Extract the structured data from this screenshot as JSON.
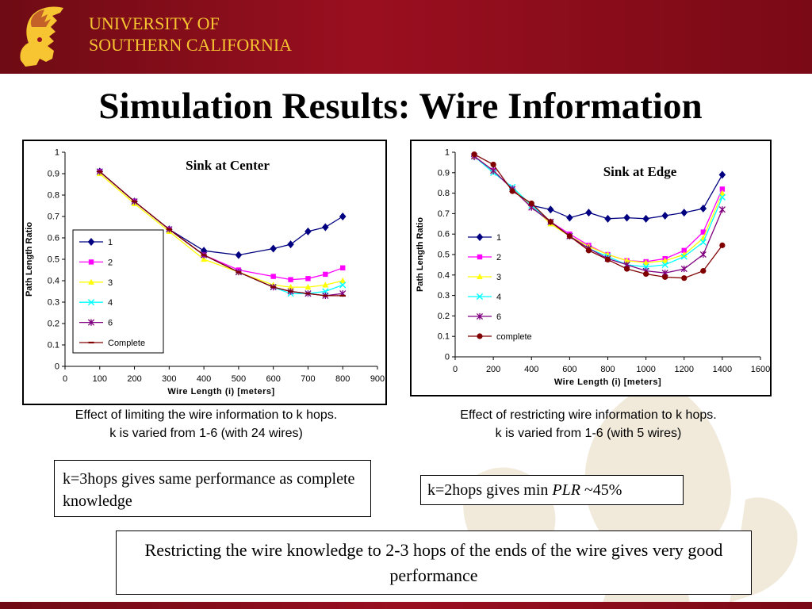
{
  "header": {
    "university_line1": "UNIVERSITY OF",
    "university_line2": "SOUTHERN CALIFORNIA"
  },
  "slide": {
    "title": "Simulation Results: Wire Information"
  },
  "captions": {
    "left_line1": "Effect of limiting the wire information to k hops.",
    "left_line2": "k is varied from 1-6 (with 24 wires)",
    "right_line1": "Effect of restricting wire information to k hops.",
    "right_line2": "k is varied from 1-6 (with 5 wires)"
  },
  "notes": {
    "left": "k=3hops gives same performance as complete knowledge",
    "right_prefix": "k=2hops gives min ",
    "right_italic": "PLR",
    "right_suffix": " ~45%",
    "bottom": "Restricting the wire knowledge to 2-3 hops of the ends of the wire gives very good performance"
  },
  "colors": {
    "header": "#9a0f20",
    "logo": "#f7c531"
  },
  "chart_data": [
    {
      "type": "line",
      "title": "Sink at Center",
      "xlabel": "Wire Length (i)  [meters]",
      "ylabel": "Path Length Ratio",
      "xlim": [
        0,
        900
      ],
      "ylim": [
        0,
        1
      ],
      "xticks": [
        "0",
        "100",
        "200",
        "300",
        "400",
        "500",
        "600",
        "700",
        "800",
        "900"
      ],
      "yticks": [
        "0",
        "0.1",
        "0.2",
        "0.3",
        "0.4",
        "0.5",
        "0.6",
        "0.7",
        "0.8",
        "0.9",
        "1"
      ],
      "legend_position": "left",
      "series": [
        {
          "name": "1",
          "color": "#000080",
          "marker": "diamond",
          "points": [
            [
              100,
              0.91
            ],
            [
              200,
              0.77
            ],
            [
              300,
              0.64
            ],
            [
              400,
              0.54
            ],
            [
              500,
              0.52
            ],
            [
              600,
              0.55
            ],
            [
              650,
              0.57
            ],
            [
              700,
              0.63
            ],
            [
              750,
              0.65
            ],
            [
              800,
              0.7
            ]
          ]
        },
        {
          "name": "2",
          "color": "#ff00ff",
          "marker": "square",
          "points": [
            [
              100,
              0.91
            ],
            [
              200,
              0.77
            ],
            [
              300,
              0.64
            ],
            [
              400,
              0.52
            ],
            [
              500,
              0.45
            ],
            [
              600,
              0.42
            ],
            [
              650,
              0.405
            ],
            [
              700,
              0.41
            ],
            [
              750,
              0.43
            ],
            [
              800,
              0.46
            ]
          ]
        },
        {
          "name": "3",
          "color": "#ffff00",
          "marker": "triangle",
          "points": [
            [
              100,
              0.9
            ],
            [
              200,
              0.76
            ],
            [
              300,
              0.63
            ],
            [
              400,
              0.5
            ],
            [
              500,
              0.44
            ],
            [
              600,
              0.38
            ],
            [
              650,
              0.37
            ],
            [
              700,
              0.37
            ],
            [
              750,
              0.38
            ],
            [
              800,
              0.4
            ]
          ]
        },
        {
          "name": "4",
          "color": "#00ffff",
          "marker": "x",
          "points": [
            [
              100,
              0.91
            ],
            [
              200,
              0.77
            ],
            [
              300,
              0.64
            ],
            [
              400,
              0.52
            ],
            [
              500,
              0.44
            ],
            [
              600,
              0.37
            ],
            [
              650,
              0.34
            ],
            [
              700,
              0.34
            ],
            [
              750,
              0.35
            ],
            [
              800,
              0.38
            ]
          ]
        },
        {
          "name": "6",
          "color": "#800080",
          "marker": "star",
          "points": [
            [
              100,
              0.91
            ],
            [
              200,
              0.77
            ],
            [
              300,
              0.64
            ],
            [
              400,
              0.52
            ],
            [
              500,
              0.44
            ],
            [
              600,
              0.37
            ],
            [
              650,
              0.35
            ],
            [
              700,
              0.34
            ],
            [
              750,
              0.33
            ],
            [
              800,
              0.34
            ]
          ]
        },
        {
          "name": "Complete",
          "color": "#800000",
          "marker": "dash",
          "points": [
            [
              100,
              0.91
            ],
            [
              200,
              0.77
            ],
            [
              300,
              0.64
            ],
            [
              400,
              0.52
            ],
            [
              500,
              0.44
            ],
            [
              600,
              0.37
            ],
            [
              650,
              0.35
            ],
            [
              700,
              0.34
            ],
            [
              750,
              0.33
            ],
            [
              800,
              0.33
            ]
          ]
        }
      ]
    },
    {
      "type": "line",
      "title": "Sink at Edge",
      "xlabel": "Wire Length (i) [meters]",
      "ylabel": "Path Length Ratio",
      "xlim": [
        0,
        1600
      ],
      "ylim": [
        0,
        1
      ],
      "xticks": [
        "0",
        "200",
        "400",
        "600",
        "800",
        "1000",
        "1200",
        "1400",
        "1600"
      ],
      "yticks": [
        "0",
        "0.1",
        "0.2",
        "0.3",
        "0.4",
        "0.5",
        "0.6",
        "0.7",
        "0.8",
        "0.9",
        "1"
      ],
      "legend_position": "left",
      "series": [
        {
          "name": "1",
          "color": "#000080",
          "marker": "diamond",
          "points": [
            [
              100,
              0.98
            ],
            [
              200,
              0.91
            ],
            [
              300,
              0.82
            ],
            [
              400,
              0.74
            ],
            [
              500,
              0.72
            ],
            [
              600,
              0.68
            ],
            [
              700,
              0.705
            ],
            [
              800,
              0.675
            ],
            [
              900,
              0.68
            ],
            [
              1000,
              0.675
            ],
            [
              1100,
              0.69
            ],
            [
              1200,
              0.705
            ],
            [
              1300,
              0.725
            ],
            [
              1400,
              0.89
            ]
          ]
        },
        {
          "name": "2",
          "color": "#ff00ff",
          "marker": "square",
          "points": [
            [
              100,
              0.98
            ],
            [
              200,
              0.91
            ],
            [
              300,
              0.82
            ],
            [
              400,
              0.74
            ],
            [
              500,
              0.66
            ],
            [
              600,
              0.6
            ],
            [
              700,
              0.545
            ],
            [
              800,
              0.5
            ],
            [
              900,
              0.47
            ],
            [
              1000,
              0.465
            ],
            [
              1100,
              0.48
            ],
            [
              1200,
              0.52
            ],
            [
              1300,
              0.61
            ],
            [
              1400,
              0.82
            ]
          ]
        },
        {
          "name": "3",
          "color": "#ffff00",
          "marker": "triangle",
          "points": [
            [
              100,
              0.98
            ],
            [
              200,
              0.91
            ],
            [
              300,
              0.82
            ],
            [
              400,
              0.74
            ],
            [
              500,
              0.65
            ],
            [
              600,
              0.59
            ],
            [
              700,
              0.54
            ],
            [
              800,
              0.5
            ],
            [
              900,
              0.47
            ],
            [
              1000,
              0.46
            ],
            [
              1100,
              0.47
            ],
            [
              1200,
              0.5
            ],
            [
              1300,
              0.58
            ],
            [
              1400,
              0.8
            ]
          ]
        },
        {
          "name": "4",
          "color": "#00ffff",
          "marker": "x",
          "points": [
            [
              100,
              0.98
            ],
            [
              200,
              0.9
            ],
            [
              300,
              0.83
            ],
            [
              400,
              0.74
            ],
            [
              500,
              0.66
            ],
            [
              600,
              0.59
            ],
            [
              700,
              0.53
            ],
            [
              800,
              0.49
            ],
            [
              900,
              0.45
            ],
            [
              1000,
              0.44
            ],
            [
              1100,
              0.45
            ],
            [
              1200,
              0.49
            ],
            [
              1300,
              0.56
            ],
            [
              1400,
              0.78
            ]
          ]
        },
        {
          "name": "6",
          "color": "#800080",
          "marker": "star",
          "points": [
            [
              100,
              0.98
            ],
            [
              200,
              0.91
            ],
            [
              300,
              0.82
            ],
            [
              400,
              0.73
            ],
            [
              500,
              0.66
            ],
            [
              600,
              0.59
            ],
            [
              700,
              0.53
            ],
            [
              800,
              0.48
            ],
            [
              900,
              0.45
            ],
            [
              1000,
              0.42
            ],
            [
              1100,
              0.41
            ],
            [
              1200,
              0.43
            ],
            [
              1300,
              0.5
            ],
            [
              1400,
              0.72
            ]
          ]
        },
        {
          "name": "complete",
          "color": "#800000",
          "marker": "circle",
          "points": [
            [
              100,
              0.99
            ],
            [
              200,
              0.94
            ],
            [
              300,
              0.81
            ],
            [
              400,
              0.75
            ],
            [
              500,
              0.66
            ],
            [
              600,
              0.59
            ],
            [
              700,
              0.52
            ],
            [
              800,
              0.475
            ],
            [
              900,
              0.43
            ],
            [
              1000,
              0.405
            ],
            [
              1100,
              0.39
            ],
            [
              1200,
              0.385
            ],
            [
              1300,
              0.42
            ],
            [
              1400,
              0.545
            ]
          ]
        }
      ]
    }
  ]
}
